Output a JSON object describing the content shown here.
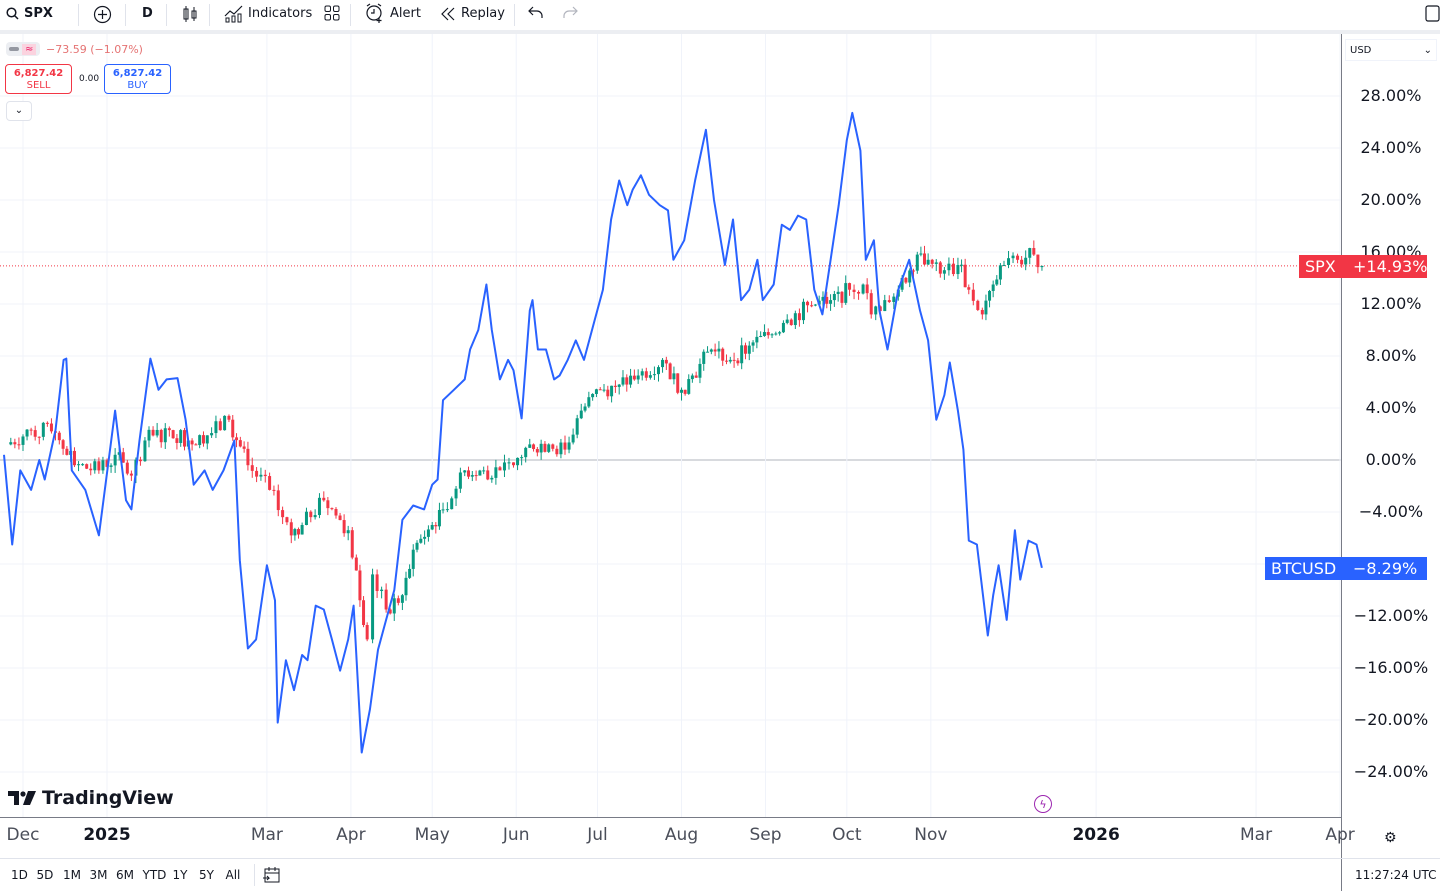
{
  "toolbar": {
    "symbol": "SPX",
    "interval": "D",
    "indicators_label": "Indicators",
    "alert_label": "Alert",
    "replay_label": "Replay",
    "icons": [
      "search-icon",
      "plus-circle-icon",
      "candles-icon",
      "indicators-icon",
      "layout-grid-icon",
      "alarm-icon",
      "replay-icon",
      "undo-icon",
      "redo-icon",
      "panel-icon"
    ]
  },
  "legend": {
    "change": "−73.59 (−1.07%)",
    "sell_price": "6,827.42",
    "sell_label": "SELL",
    "spread": "0.00",
    "buy_price": "6,827.42",
    "buy_label": "BUY",
    "collapse_icon": "chevron-down-icon"
  },
  "price_axis": {
    "currency": "USD",
    "spx_tag": {
      "name": "SPX",
      "value": "+14.93%",
      "color": "#f23645"
    },
    "btc_tag": {
      "name": "BTCUSD",
      "value": "−8.29%",
      "color": "#2962ff"
    }
  },
  "brand": "TradingView",
  "ranges": [
    "1D",
    "5D",
    "1M",
    "3M",
    "6M",
    "YTD",
    "1Y",
    "5Y",
    "All"
  ],
  "clock": "11:27:24 UTC",
  "chart_data": {
    "type": "line",
    "y_unit": "percent change",
    "ylim": [
      -26,
      30
    ],
    "y_ticks": [
      "28.00%",
      "24.00%",
      "20.00%",
      "16.00%",
      "12.00%",
      "8.00%",
      "4.00%",
      "0.00%",
      "−4.00%",
      "−12.00%",
      "−16.00%",
      "−20.00%",
      "−24.00%"
    ],
    "x_ticks": [
      {
        "label": "Dec",
        "date": "2024-12-01",
        "bold": false
      },
      {
        "label": "2025",
        "date": "2025-01-01",
        "bold": true
      },
      {
        "label": "Mar",
        "date": "2025-03-01",
        "bold": false
      },
      {
        "label": "Apr",
        "date": "2025-04-01",
        "bold": false
      },
      {
        "label": "May",
        "date": "2025-05-01",
        "bold": false
      },
      {
        "label": "Jun",
        "date": "2025-06-01",
        "bold": false
      },
      {
        "label": "Jul",
        "date": "2025-07-01",
        "bold": false
      },
      {
        "label": "Aug",
        "date": "2025-08-01",
        "bold": false
      },
      {
        "label": "Sep",
        "date": "2025-09-01",
        "bold": false
      },
      {
        "label": "Oct",
        "date": "2025-10-01",
        "bold": false
      },
      {
        "label": "Nov",
        "date": "2025-11-01",
        "bold": false
      },
      {
        "label": "2026",
        "date": "2026-01-01",
        "bold": true
      },
      {
        "label": "Mar",
        "date": "2026-03-01",
        "bold": false
      },
      {
        "label": "Apr",
        "date": "2026-04-01",
        "bold": false
      }
    ],
    "grid": true,
    "series": [
      {
        "name": "SPX",
        "style": "candles",
        "up_color": "#089981",
        "down_color": "#f23645",
        "points": [
          [
            "2024-11-25",
            1.2
          ],
          [
            "2024-12-04",
            2.3
          ],
          [
            "2024-12-13",
            2.1
          ],
          [
            "2024-12-20",
            -0.4
          ],
          [
            "2024-12-29",
            -0.8
          ],
          [
            "2025-01-04",
            0.4
          ],
          [
            "2025-01-10",
            -1.2
          ],
          [
            "2025-01-15",
            1.5
          ],
          [
            "2025-01-24",
            2.3
          ],
          [
            "2025-01-31",
            1.5
          ],
          [
            "2025-02-07",
            1.9
          ],
          [
            "2025-02-15",
            3.1
          ],
          [
            "2025-02-22",
            -0.4
          ],
          [
            "2025-03-02",
            -2.3
          ],
          [
            "2025-03-10",
            -5.8
          ],
          [
            "2025-03-14",
            -5.0
          ],
          [
            "2025-03-22",
            -3.1
          ],
          [
            "2025-03-31",
            -5.4
          ],
          [
            "2025-04-03",
            -8.5
          ],
          [
            "2025-04-07",
            -13.8
          ],
          [
            "2025-04-09",
            -8.8
          ],
          [
            "2025-04-14",
            -11.5
          ],
          [
            "2025-04-20",
            -10.4
          ],
          [
            "2025-04-24",
            -6.9
          ],
          [
            "2025-05-01",
            -5.0
          ],
          [
            "2025-05-05",
            -3.8
          ],
          [
            "2025-05-13",
            -0.8
          ],
          [
            "2025-05-20",
            -0.8
          ],
          [
            "2025-05-26",
            -0.8
          ],
          [
            "2025-05-31",
            -0.4
          ],
          [
            "2025-06-06",
            1.2
          ],
          [
            "2025-06-13",
            1.2
          ],
          [
            "2025-06-19",
            0.8
          ],
          [
            "2025-06-25",
            3.8
          ],
          [
            "2025-07-02",
            5.4
          ],
          [
            "2025-07-09",
            5.8
          ],
          [
            "2025-07-16",
            6.5
          ],
          [
            "2025-07-25",
            7.7
          ],
          [
            "2025-08-01",
            5.4
          ],
          [
            "2025-08-05",
            6.5
          ],
          [
            "2025-08-12",
            8.5
          ],
          [
            "2025-08-19",
            7.7
          ],
          [
            "2025-08-26",
            8.8
          ],
          [
            "2025-09-02",
            9.6
          ],
          [
            "2025-09-09",
            10.8
          ],
          [
            "2025-09-18",
            11.9
          ],
          [
            "2025-09-25",
            12.3
          ],
          [
            "2025-10-02",
            13.1
          ],
          [
            "2025-10-07",
            13.5
          ],
          [
            "2025-10-10",
            11.2
          ],
          [
            "2025-10-15",
            12.3
          ],
          [
            "2025-10-20",
            13.1
          ],
          [
            "2025-10-27",
            15.8
          ],
          [
            "2025-10-31",
            15.4
          ],
          [
            "2025-11-06",
            14.6
          ],
          [
            "2025-11-11",
            15.0
          ],
          [
            "2025-11-15",
            13.1
          ],
          [
            "2025-11-20",
            11.2
          ],
          [
            "2025-11-24",
            13.5
          ],
          [
            "2025-11-28",
            15.0
          ],
          [
            "2025-12-03",
            15.4
          ],
          [
            "2025-12-09",
            15.8
          ],
          [
            "2025-12-12",
            14.93
          ]
        ]
      },
      {
        "name": "BTCUSD",
        "style": "line",
        "color": "#2962ff",
        "points": [
          [
            "2024-11-24",
            0.4
          ],
          [
            "2024-11-27",
            -6.5
          ],
          [
            "2024-11-30",
            -0.8
          ],
          [
            "2024-12-04",
            -2.3
          ],
          [
            "2024-12-07",
            0
          ],
          [
            "2024-12-09",
            -1.5
          ],
          [
            "2024-12-13",
            2.3
          ],
          [
            "2024-12-16",
            7.7
          ],
          [
            "2024-12-17",
            7.8
          ],
          [
            "2024-12-19",
            -0.8
          ],
          [
            "2024-12-24",
            -2.3
          ],
          [
            "2024-12-29",
            -5.8
          ],
          [
            "2025-01-04",
            3.8
          ],
          [
            "2025-01-08",
            -3.1
          ],
          [
            "2025-01-10",
            -3.8
          ],
          [
            "2025-01-13",
            1.5
          ],
          [
            "2025-01-17",
            7.8
          ],
          [
            "2025-01-20",
            5.4
          ],
          [
            "2025-01-23",
            6.2
          ],
          [
            "2025-01-27",
            6.3
          ],
          [
            "2025-01-30",
            3.1
          ],
          [
            "2025-02-02",
            -1.9
          ],
          [
            "2025-02-06",
            -0.8
          ],
          [
            "2025-02-09",
            -2.3
          ],
          [
            "2025-02-13",
            -0.8
          ],
          [
            "2025-02-17",
            1.5
          ],
          [
            "2025-02-19",
            -7.7
          ],
          [
            "2025-02-22",
            -14.5
          ],
          [
            "2025-02-25",
            -13.8
          ],
          [
            "2025-03-01",
            -8.1
          ],
          [
            "2025-03-04",
            -10.8
          ],
          [
            "2025-03-05",
            -20.2
          ],
          [
            "2025-03-08",
            -15.4
          ],
          [
            "2025-03-11",
            -17.7
          ],
          [
            "2025-03-14",
            -15.0
          ],
          [
            "2025-03-16",
            -15.4
          ],
          [
            "2025-03-19",
            -11.2
          ],
          [
            "2025-03-22",
            -11.5
          ],
          [
            "2025-03-25",
            -13.8
          ],
          [
            "2025-03-28",
            -16.2
          ],
          [
            "2025-03-31",
            -13.8
          ],
          [
            "2025-04-02",
            -11.2
          ],
          [
            "2025-04-05",
            -22.5
          ],
          [
            "2025-04-08",
            -19.2
          ],
          [
            "2025-04-11",
            -14.6
          ],
          [
            "2025-04-14",
            -12.3
          ],
          [
            "2025-04-17",
            -10.0
          ],
          [
            "2025-04-20",
            -4.6
          ],
          [
            "2025-04-24",
            -3.5
          ],
          [
            "2025-04-28",
            -3.8
          ],
          [
            "2025-05-01",
            -1.9
          ],
          [
            "2025-05-03",
            -1.5
          ],
          [
            "2025-05-05",
            4.6
          ],
          [
            "2025-05-09",
            5.4
          ],
          [
            "2025-05-13",
            6.2
          ],
          [
            "2025-05-15",
            8.5
          ],
          [
            "2025-05-18",
            10.0
          ],
          [
            "2025-05-21",
            13.5
          ],
          [
            "2025-05-23",
            10.0
          ],
          [
            "2025-05-26",
            6.2
          ],
          [
            "2025-05-29",
            7.7
          ],
          [
            "2025-05-31",
            6.9
          ],
          [
            "2025-06-03",
            3.2
          ],
          [
            "2025-06-06",
            11.5
          ],
          [
            "2025-06-07",
            12.3
          ],
          [
            "2025-06-09",
            8.5
          ],
          [
            "2025-06-12",
            8.5
          ],
          [
            "2025-06-15",
            6.2
          ],
          [
            "2025-06-17",
            6.5
          ],
          [
            "2025-06-20",
            7.7
          ],
          [
            "2025-06-23",
            9.2
          ],
          [
            "2025-06-26",
            7.7
          ],
          [
            "2025-06-30",
            10.8
          ],
          [
            "2025-07-03",
            13.1
          ],
          [
            "2025-07-06",
            18.5
          ],
          [
            "2025-07-09",
            21.5
          ],
          [
            "2025-07-12",
            19.6
          ],
          [
            "2025-07-14",
            20.8
          ],
          [
            "2025-07-17",
            21.9
          ],
          [
            "2025-07-20",
            20.4
          ],
          [
            "2025-07-24",
            19.6
          ],
          [
            "2025-07-27",
            19.2
          ],
          [
            "2025-07-29",
            15.4
          ],
          [
            "2025-08-02",
            16.9
          ],
          [
            "2025-08-06",
            21.5
          ],
          [
            "2025-08-10",
            25.4
          ],
          [
            "2025-08-13",
            20.0
          ],
          [
            "2025-08-17",
            15.0
          ],
          [
            "2025-08-20",
            18.5
          ],
          [
            "2025-08-23",
            12.3
          ],
          [
            "2025-08-26",
            13.1
          ],
          [
            "2025-08-29",
            15.4
          ],
          [
            "2025-08-31",
            12.3
          ],
          [
            "2025-09-04",
            13.5
          ],
          [
            "2025-09-07",
            18.1
          ],
          [
            "2025-09-10",
            17.7
          ],
          [
            "2025-09-13",
            18.8
          ],
          [
            "2025-09-16",
            18.5
          ],
          [
            "2025-09-19",
            13.1
          ],
          [
            "2025-09-22",
            11.2
          ],
          [
            "2025-09-25",
            15.4
          ],
          [
            "2025-09-28",
            19.6
          ],
          [
            "2025-10-01",
            24.6
          ],
          [
            "2025-10-03",
            26.7
          ],
          [
            "2025-10-06",
            23.8
          ],
          [
            "2025-10-08",
            15.4
          ],
          [
            "2025-10-11",
            16.9
          ],
          [
            "2025-10-13",
            11.5
          ],
          [
            "2025-10-16",
            8.5
          ],
          [
            "2025-10-20",
            13.1
          ],
          [
            "2025-10-24",
            15.4
          ],
          [
            "2025-10-28",
            11.5
          ],
          [
            "2025-10-31",
            9.2
          ],
          [
            "2025-11-03",
            3.1
          ],
          [
            "2025-11-06",
            5.0
          ],
          [
            "2025-11-08",
            7.5
          ],
          [
            "2025-11-11",
            3.8
          ],
          [
            "2025-11-13",
            0.8
          ],
          [
            "2025-11-15",
            -6.2
          ],
          [
            "2025-11-18",
            -6.5
          ],
          [
            "2025-11-22",
            -13.5
          ],
          [
            "2025-11-24",
            -10.4
          ],
          [
            "2025-11-26",
            -8.1
          ],
          [
            "2025-11-29",
            -12.3
          ],
          [
            "2025-12-02",
            -5.4
          ],
          [
            "2025-12-04",
            -9.2
          ],
          [
            "2025-12-07",
            -6.2
          ],
          [
            "2025-12-10",
            -6.5
          ],
          [
            "2025-12-12",
            -8.29
          ]
        ]
      }
    ]
  }
}
